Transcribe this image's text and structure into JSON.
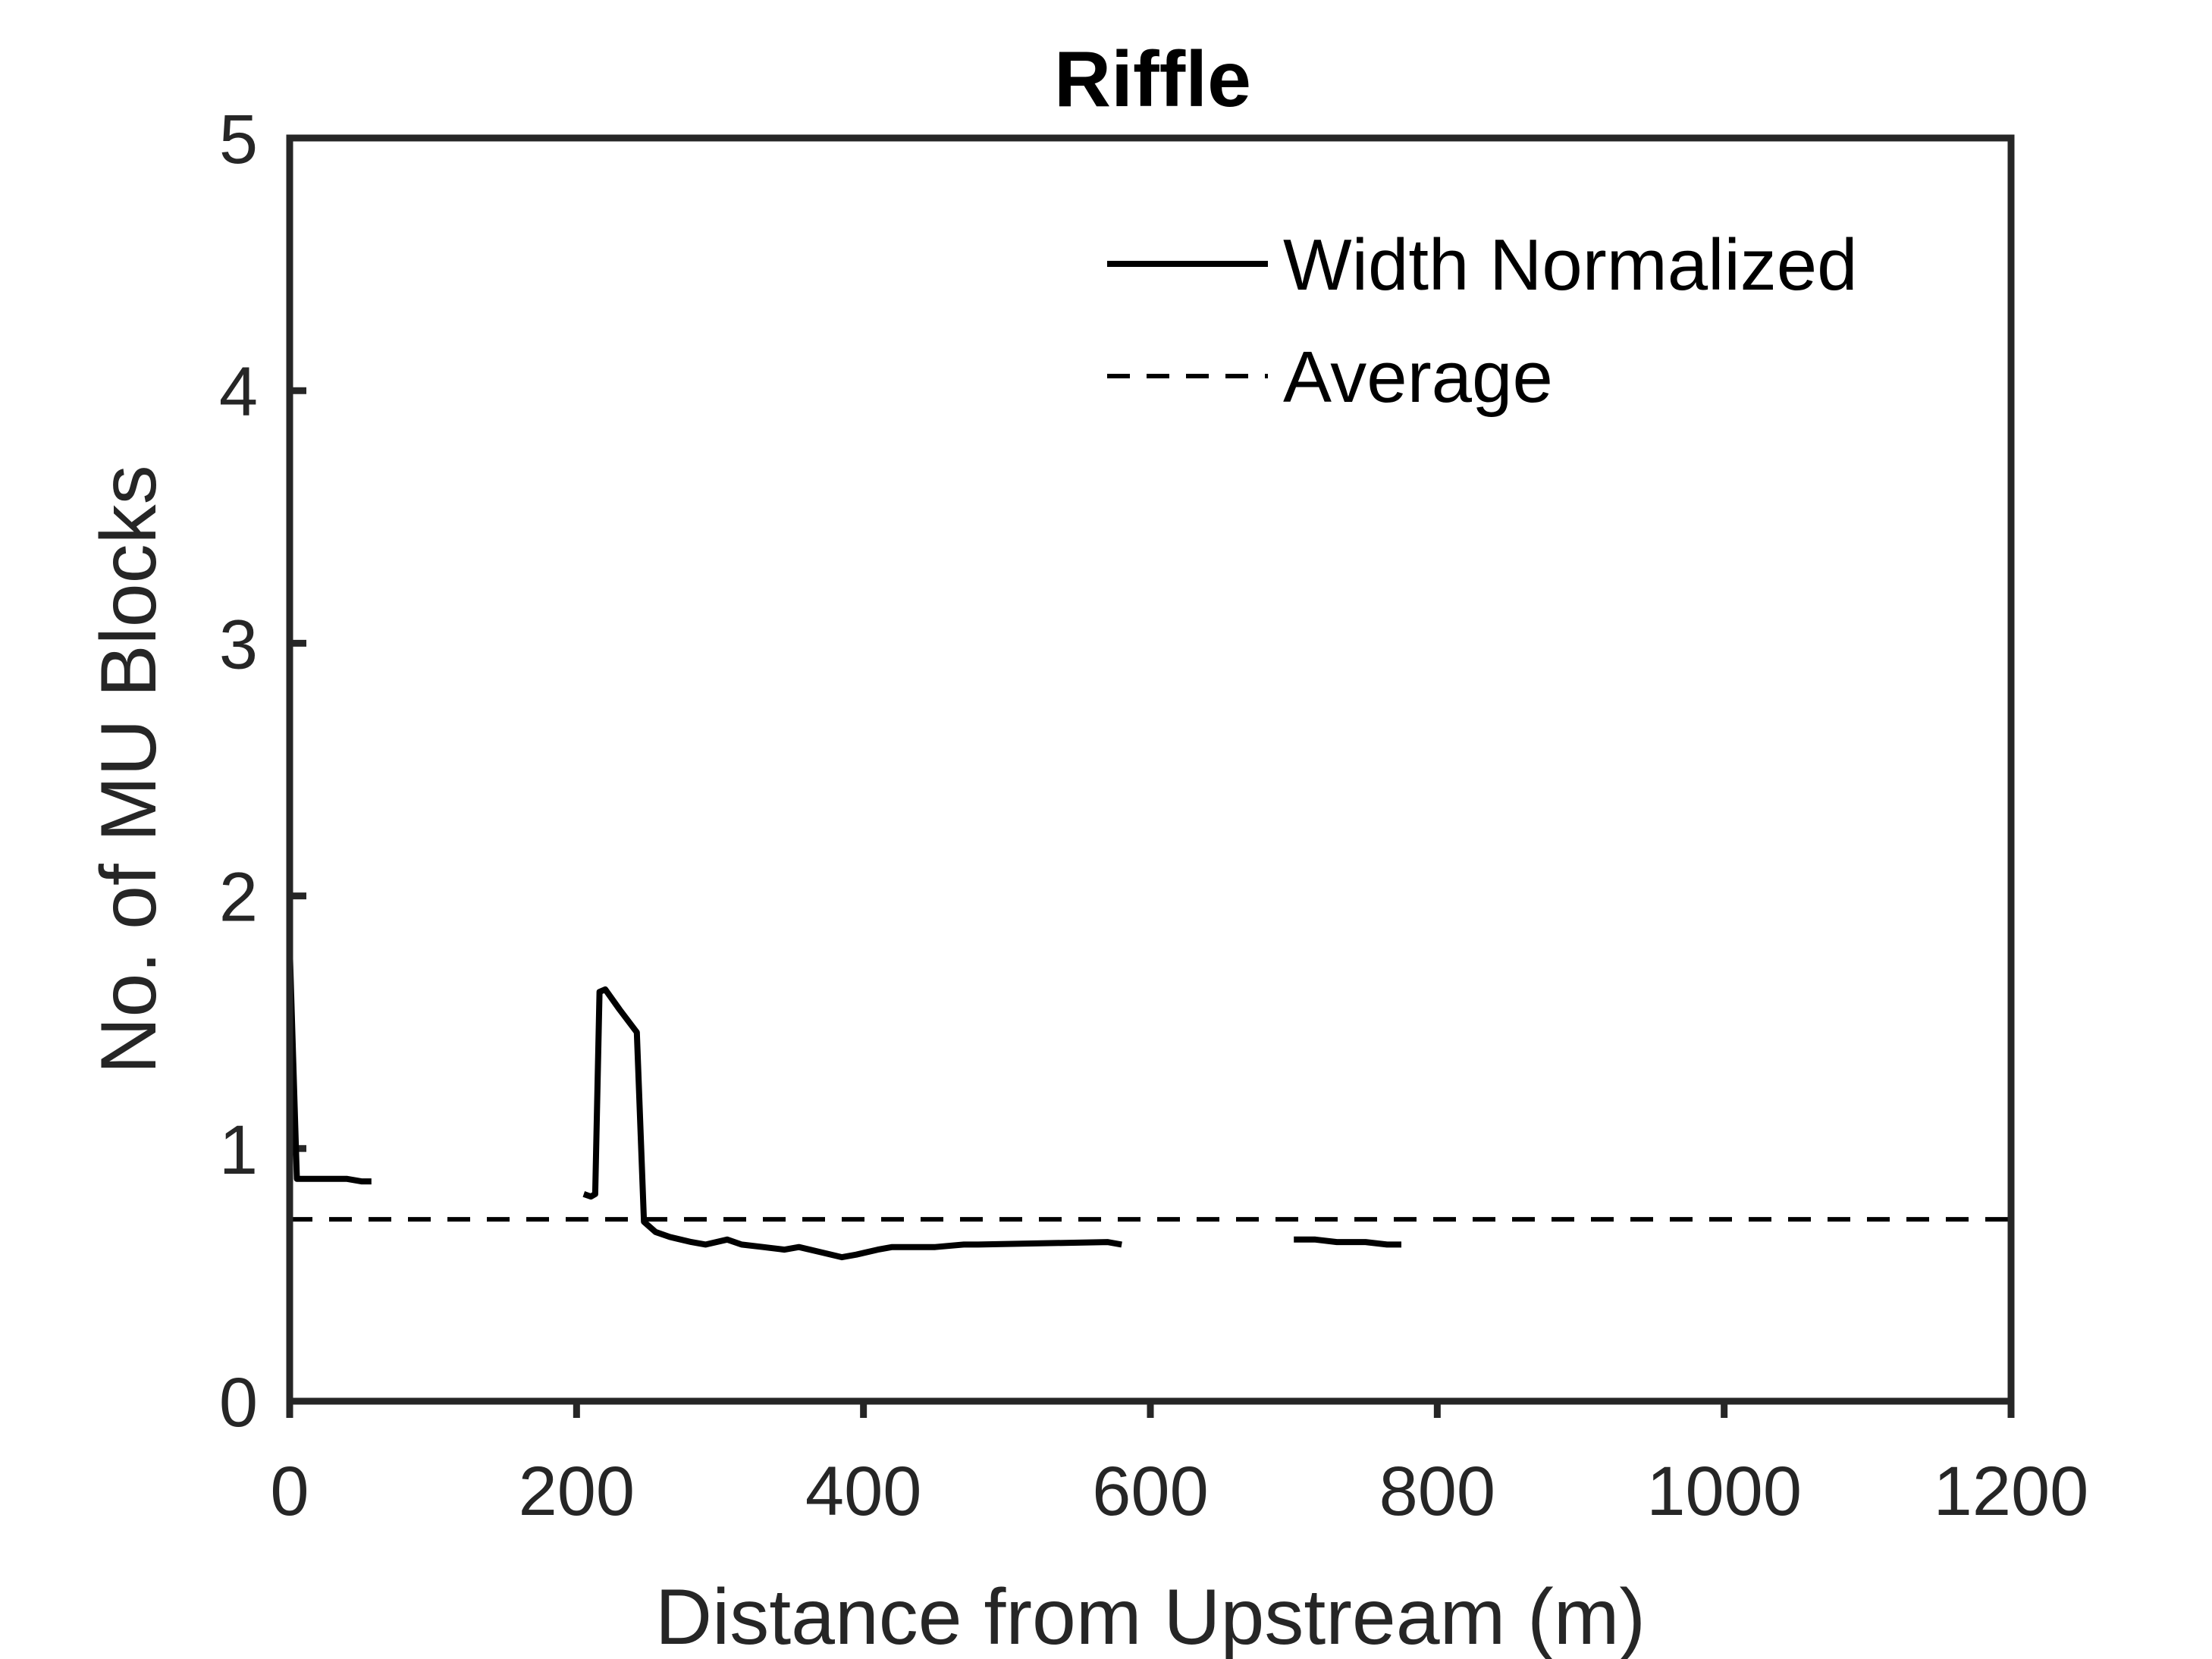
{
  "chart_data": {
    "type": "line",
    "title": "Riffle",
    "xlabel": "Distance from Upstream (m)",
    "ylabel": "No. of MU Blocks",
    "xlim": [
      0,
      1200
    ],
    "ylim": [
      0,
      5
    ],
    "xticks": [
      0,
      200,
      400,
      600,
      800,
      1000,
      1200
    ],
    "yticks": [
      0,
      1,
      2,
      3,
      4,
      5
    ],
    "grid": false,
    "legend_position": "top-right",
    "colors": {
      "series": "#000000",
      "axis": "#262626"
    },
    "series": [
      {
        "name": "Width Normalized",
        "style": "solid",
        "segments": [
          [
            [
              0,
              1.8
            ],
            [
              5,
              0.88
            ],
            [
              20,
              0.88
            ],
            [
              40,
              0.88
            ],
            [
              50,
              0.87
            ],
            [
              57,
              0.87
            ]
          ],
          [
            [
              205,
              0.82
            ],
            [
              210,
              0.81
            ],
            [
              213,
              0.82
            ],
            [
              216,
              1.62
            ],
            [
              220,
              1.63
            ],
            [
              230,
              1.55
            ],
            [
              242,
              1.46
            ],
            [
              247,
              0.71
            ],
            [
              255,
              0.67
            ],
            [
              265,
              0.65
            ],
            [
              280,
              0.63
            ],
            [
              290,
              0.62
            ],
            [
              305,
              0.64
            ],
            [
              315,
              0.62
            ],
            [
              330,
              0.61
            ],
            [
              345,
              0.6
            ],
            [
              355,
              0.61
            ],
            [
              370,
              0.59
            ],
            [
              385,
              0.57
            ],
            [
              395,
              0.58
            ],
            [
              410,
              0.6
            ],
            [
              420,
              0.61
            ],
            [
              440,
              0.61
            ],
            [
              450,
              0.61
            ],
            [
              470,
              0.62
            ],
            [
              480,
              0.62
            ],
            [
              570,
              0.63
            ],
            [
              580,
              0.62
            ]
          ],
          [
            [
              700,
              0.64
            ],
            [
              715,
              0.64
            ],
            [
              730,
              0.63
            ],
            [
              750,
              0.63
            ],
            [
              765,
              0.62
            ],
            [
              775,
              0.62
            ]
          ]
        ]
      },
      {
        "name": "Average",
        "style": "dashed",
        "segments": [
          [
            [
              0,
              0.72
            ],
            [
              1200,
              0.72
            ]
          ]
        ]
      }
    ]
  }
}
